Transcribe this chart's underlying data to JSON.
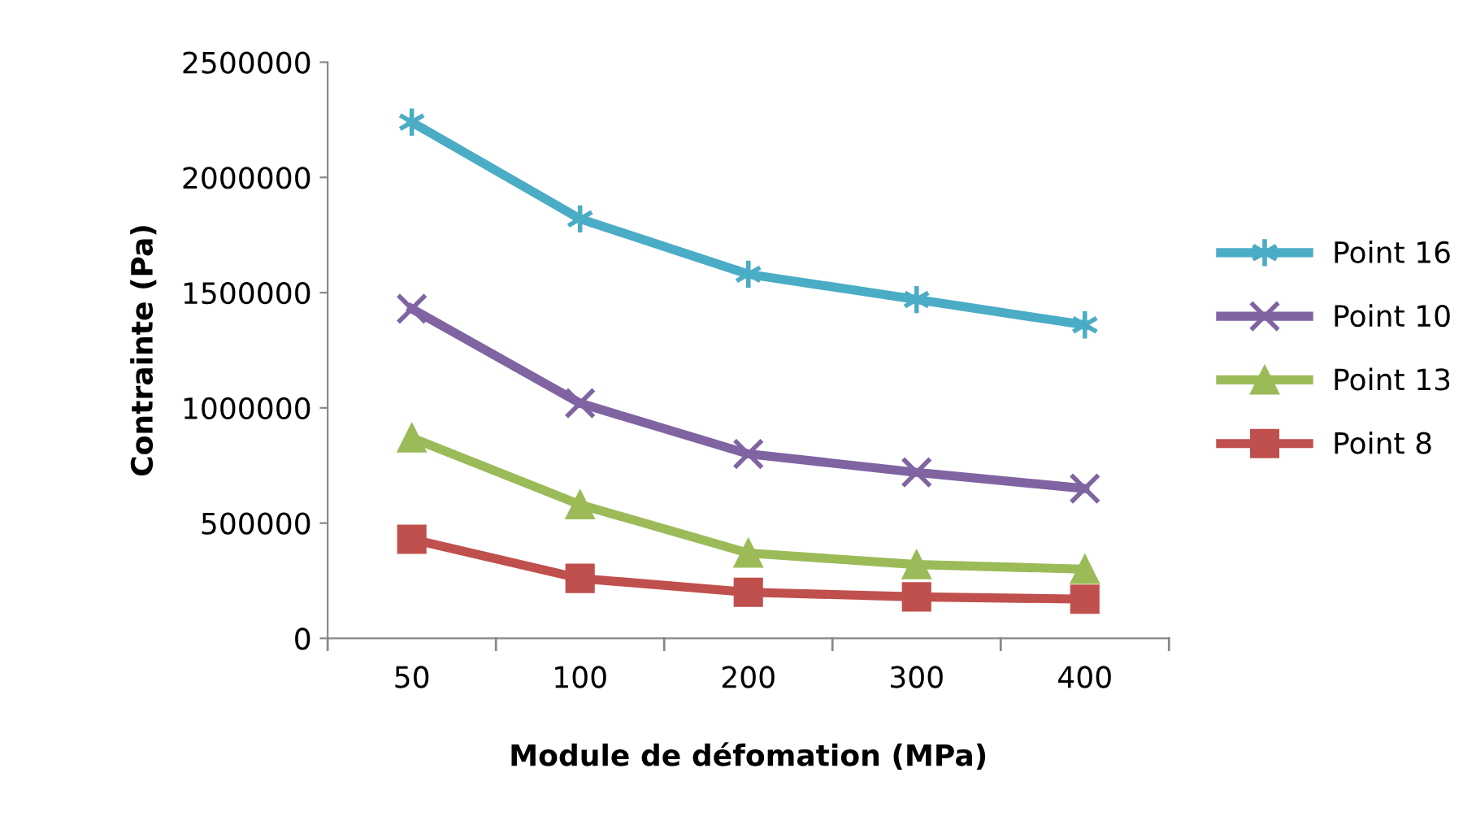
{
  "chart_data": {
    "type": "line",
    "xlabel": "Module de défomation (MPa)",
    "ylabel": "Contrainte (Pa)",
    "categories": [
      "50",
      "100",
      "200",
      "300",
      "400"
    ],
    "series": [
      {
        "name": "Point 16",
        "color": "#4bacc6",
        "marker": "cross",
        "values": [
          2240000,
          1820000,
          1580000,
          1470000,
          1360000
        ]
      },
      {
        "name": "Point 10",
        "color": "#8064a2",
        "marker": "cross",
        "values": [
          1430000,
          1020000,
          800000,
          720000,
          650000
        ]
      },
      {
        "name": "Point 13",
        "color": "#9bbb59",
        "marker": "triangle",
        "values": [
          870000,
          580000,
          370000,
          320000,
          300000
        ]
      },
      {
        "name": "Point 8",
        "color": "#c0504d",
        "marker": "square",
        "values": [
          430000,
          260000,
          200000,
          180000,
          170000
        ]
      }
    ],
    "ylim": [
      0,
      2500000
    ],
    "yticks": [
      0,
      500000,
      1000000,
      1500000,
      2000000,
      2500000
    ],
    "grid": false,
    "legend": "right",
    "line_style": "solid"
  }
}
